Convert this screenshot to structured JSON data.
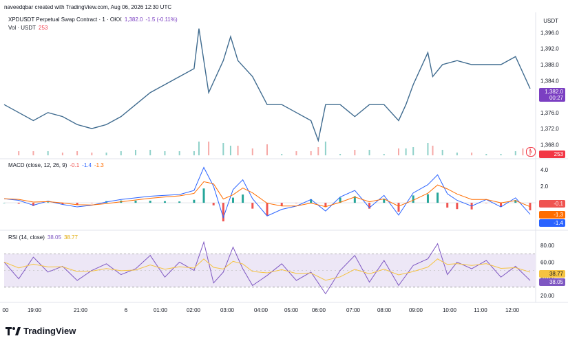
{
  "header": {
    "credit": "naveedqbar created with TradingView.com, Aug 06, 2026 12:30 UTC"
  },
  "brand": {
    "name": "TradingView"
  },
  "price_pane": {
    "symbol": "XPDUSDT Perpetual Swap Contract · 1 · OKX",
    "last": "1,382.0",
    "change": "-1.5 (-0.11%)",
    "vol_label": "Vol · USDT",
    "vol_value": "253",
    "currency": "USDT",
    "price_tag": "1,382.0",
    "countdown": "00:27",
    "vol_tag": "253",
    "colors": {
      "up": "#8e44c9",
      "down": "#3f6b8f",
      "tag": "#7b3fc2",
      "vol": "#f23645"
    }
  },
  "macd_pane": {
    "label": "MACD (close, 12, 26, 9)",
    "hist": "-0.1",
    "macd": "-1.4",
    "signal": "-1.3",
    "tag_hist": "-0.1",
    "tag_signal": "-1.3",
    "tag_macd": "-1.4",
    "colors": {
      "macd": "#2962ff",
      "signal": "#ff6d00",
      "hist_up": "#26a69a",
      "hist_down": "#ef5350",
      "tag_hist": "#ef5350",
      "tag_signal": "#ff6d00",
      "tag_macd": "#2962ff"
    }
  },
  "rsi_pane": {
    "label": "RSI (14, close)",
    "rsi": "38.05",
    "ma": "38.77",
    "tag_ma": "38.77",
    "tag_rsi": "38.05",
    "colors": {
      "rsi": "#7e57c2",
      "ma": "#f5c342",
      "band": "#ede7f6"
    }
  },
  "chart_data": [
    {
      "type": "line",
      "name": "price",
      "x": [
        "18:30",
        "19:00",
        "19:30",
        "20:00",
        "20:30",
        "21:00",
        "21:30",
        "22:00",
        "22:30",
        "23:00",
        "23:30",
        "00:00",
        "00:30",
        "01:00",
        "01:10",
        "01:30",
        "02:00",
        "02:15",
        "02:30",
        "03:00",
        "03:30",
        "04:00",
        "04:30",
        "05:00",
        "05:15",
        "05:30",
        "06:00",
        "06:30",
        "07:00",
        "07:30",
        "08:00",
        "08:15",
        "08:30",
        "09:00",
        "09:10",
        "09:30",
        "10:00",
        "10:30",
        "11:00",
        "11:30",
        "12:00",
        "12:15",
        "12:30"
      ],
      "y": [
        1378,
        1376,
        1374,
        1376,
        1375,
        1373,
        1372,
        1373,
        1375,
        1378,
        1381,
        1383,
        1385,
        1387,
        1397,
        1381,
        1389,
        1395,
        1389,
        1385,
        1378,
        1378,
        1376,
        1374,
        1369,
        1378,
        1378,
        1375,
        1378,
        1378,
        1374,
        1378,
        1383,
        1391,
        1385,
        1388,
        1389,
        1388,
        1388,
        1388,
        1390,
        1386,
        1382
      ],
      "yaxis_ticks": [
        "1,396.0",
        "1,392.0",
        "1,388.0",
        "1,384.0",
        "1,380.0",
        "1,376.0",
        "1,372.0",
        "1,368.0"
      ],
      "ylim": [
        1366,
        1399
      ]
    },
    {
      "type": "line",
      "name": "macd",
      "x": [
        "18:30",
        "19:00",
        "19:30",
        "20:00",
        "20:30",
        "21:00",
        "21:30",
        "22:00",
        "22:30",
        "23:00",
        "23:30",
        "00:00",
        "00:30",
        "01:00",
        "01:20",
        "01:40",
        "02:00",
        "02:20",
        "02:40",
        "03:00",
        "03:30",
        "04:00",
        "04:30",
        "05:00",
        "05:30",
        "06:00",
        "06:30",
        "07:00",
        "07:30",
        "08:00",
        "08:30",
        "09:00",
        "09:20",
        "09:40",
        "10:00",
        "10:30",
        "11:00",
        "11:30",
        "12:00",
        "12:30"
      ],
      "y": [
        0.5,
        0.3,
        -0.3,
        0.2,
        -0.2,
        -0.5,
        -0.3,
        0.1,
        0.4,
        0.6,
        0.8,
        0.9,
        1.0,
        1.5,
        4.3,
        2.0,
        -1.8,
        1.6,
        2.8,
        0.5,
        -1.6,
        -0.8,
        -0.4,
        0.4,
        -1.0,
        0.7,
        1.5,
        -0.6,
        0.9,
        -1.5,
        1.2,
        2.2,
        3.4,
        1.1,
        0.3,
        -0.4,
        0.4,
        -0.5,
        0.6,
        -1.4
      ],
      "yaxis_ticks": [
        "4.0",
        "2.0"
      ],
      "ylim": [
        -2.5,
        4.6
      ]
    },
    {
      "type": "line",
      "name": "rsi",
      "x": [
        "18:30",
        "19:00",
        "19:30",
        "20:00",
        "20:30",
        "21:00",
        "21:30",
        "22:00",
        "22:30",
        "23:00",
        "23:30",
        "00:00",
        "00:30",
        "01:00",
        "01:20",
        "01:40",
        "02:00",
        "02:20",
        "02:40",
        "03:00",
        "03:30",
        "04:00",
        "04:30",
        "05:00",
        "05:30",
        "06:00",
        "06:30",
        "07:00",
        "07:30",
        "08:00",
        "08:30",
        "09:00",
        "09:20",
        "09:40",
        "10:00",
        "10:30",
        "11:00",
        "11:30",
        "12:00",
        "12:30"
      ],
      "y": [
        60,
        40,
        66,
        48,
        55,
        38,
        50,
        58,
        45,
        52,
        68,
        42,
        60,
        50,
        84,
        35,
        48,
        78,
        52,
        32,
        44,
        58,
        38,
        48,
        22,
        50,
        68,
        36,
        62,
        32,
        56,
        64,
        82,
        45,
        60,
        52,
        62,
        42,
        55,
        38
      ],
      "yaxis_ticks": [
        "80.00",
        "60.00",
        "40.00",
        "20.00"
      ],
      "ylim": [
        15,
        90
      ]
    }
  ],
  "time_axis": [
    "00",
    "19:00",
    "21:00",
    "6",
    "01:00",
    "02:00",
    "03:00",
    "04:00",
    "05:00",
    "06:00",
    "07:00",
    "08:00",
    "09:00",
    "10:00",
    "11:00",
    "12:00"
  ]
}
